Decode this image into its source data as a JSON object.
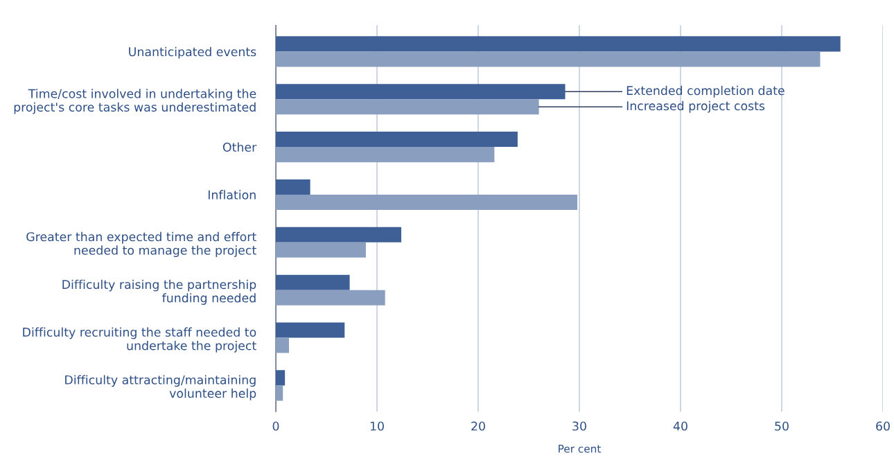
{
  "chart_data": {
    "type": "bar",
    "orientation": "horizontal",
    "xlabel": "Per cent",
    "categories": [
      "Unanticipated events",
      "Time/cost involved in undertaking the\nproject's core tasks was underestimated",
      "Other",
      "Inflation",
      "Greater than expected time and effort\nneeded to manage the project",
      "Difficulty raising the partnership\nfunding needed",
      "Difficulty recruiting the staff needed to\nundertake the project",
      "Difficulty attracting/maintaining\nvolunteer help"
    ],
    "series": [
      {
        "name": "Extended completion date",
        "color": "#3f6096",
        "values": [
          55.8,
          28.6,
          23.9,
          3.4,
          12.4,
          7.3,
          6.8,
          0.9
        ]
      },
      {
        "name": "Increased project costs",
        "color": "#8a9fc0",
        "values": [
          53.8,
          26.0,
          21.6,
          29.8,
          8.9,
          10.8,
          1.3,
          0.7
        ]
      }
    ],
    "xlim": [
      0,
      60
    ],
    "xticks": [
      0,
      10,
      20,
      30,
      40,
      50,
      60
    ],
    "grid": "x",
    "legend": false
  }
}
